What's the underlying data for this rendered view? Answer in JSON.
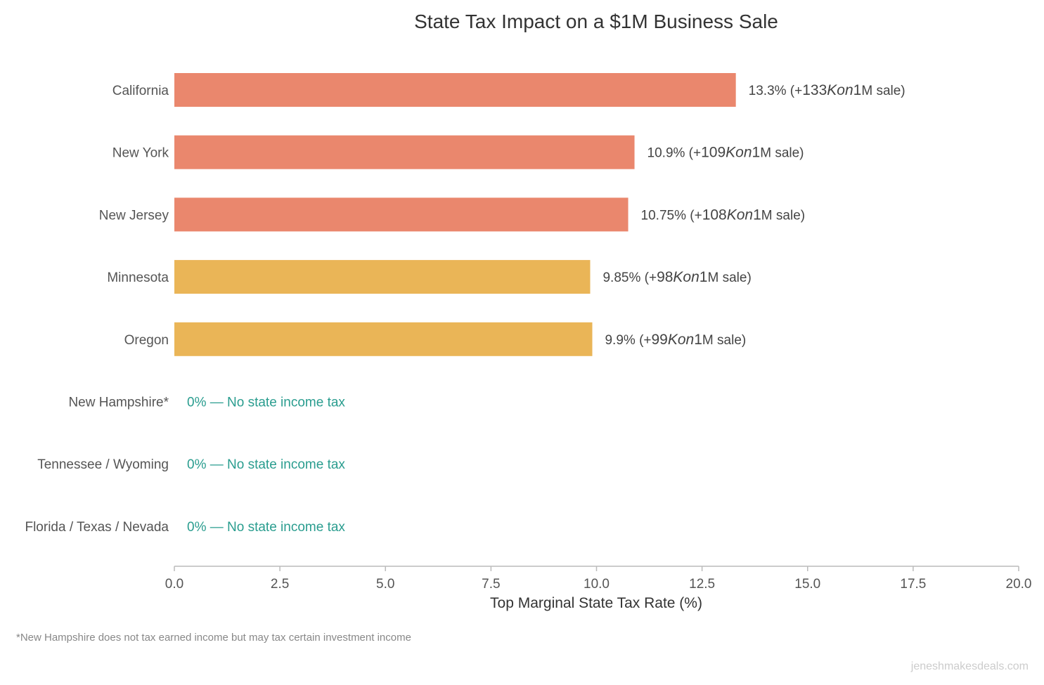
{
  "chart_data": {
    "type": "bar",
    "orientation": "horizontal",
    "title": "State Tax Impact on a $1M Business Sale",
    "xlabel": "Top Marginal State Tax Rate (%)",
    "ylabel": "",
    "xlim": [
      0,
      20
    ],
    "xticks": [
      "0.0",
      "2.5",
      "5.0",
      "7.5",
      "10.0",
      "12.5",
      "15.0",
      "17.5",
      "20.0"
    ],
    "grid": false,
    "categories": [
      "California",
      "New York",
      "New Jersey",
      "Minnesota",
      "Oregon",
      "New Hampshire*",
      "Tennessee / Wyoming",
      "Florida / Texas / Nevada"
    ],
    "values": [
      13.3,
      10.9,
      10.75,
      9.85,
      9.9,
      0,
      0,
      0
    ],
    "bar_colors": [
      "#EA876D",
      "#EA876D",
      "#EA876D",
      "#EAB557",
      "#EAB557",
      "#2A9D8F",
      "#2A9D8F",
      "#2A9D8F"
    ],
    "data_labels": [
      "13.3%  (+133Kon1M sale)",
      "10.9%  (+109Kon1M sale)",
      "10.75%  (+108Kon1M sale)",
      "9.85%  (+98Kon1M sale)",
      "9.9%  (+99Kon1M sale)",
      "0% — No state income tax",
      "0% — No state income tax",
      "0% — No state income tax"
    ],
    "label_colors": [
      "#444444",
      "#444444",
      "#444444",
      "#444444",
      "#444444",
      "#2A9D8F",
      "#2A9D8F",
      "#2A9D8F"
    ]
  },
  "footnote": "*New Hampshire does not tax earned income but may tax certain investment income",
  "watermark": "jeneshmakesdeals.com"
}
